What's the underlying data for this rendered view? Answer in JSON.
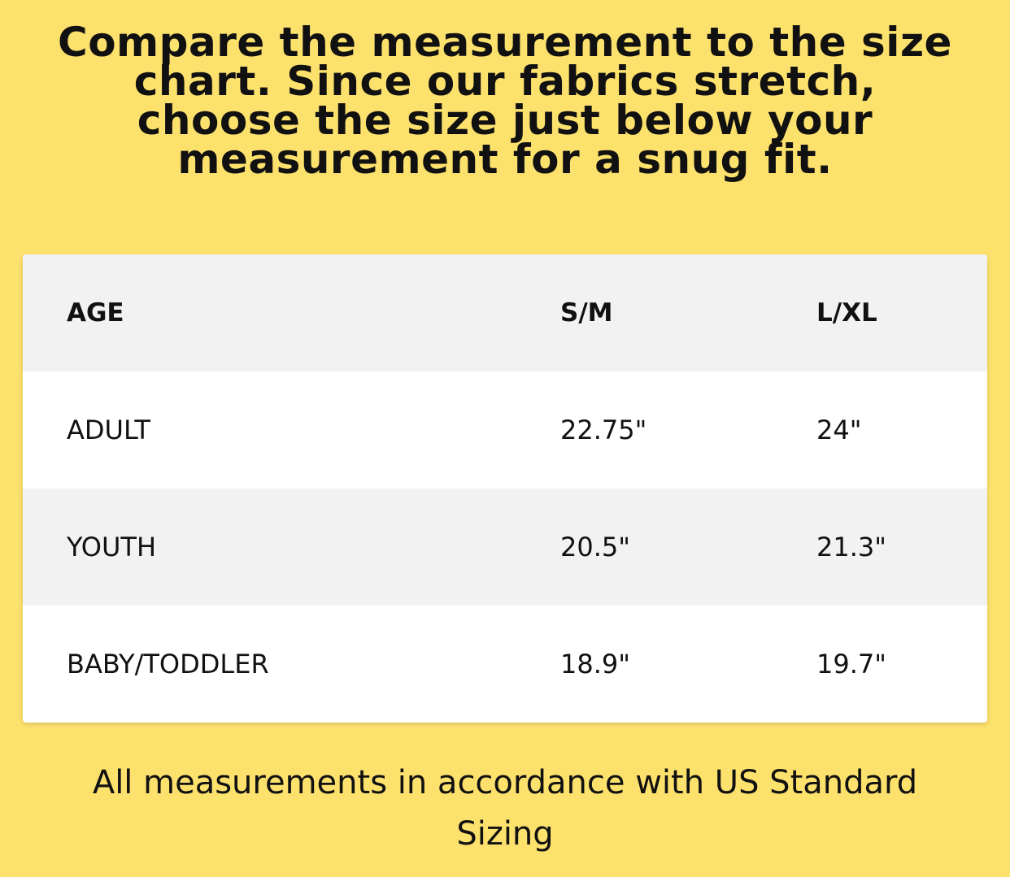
{
  "heading": "Compare the measurement to the size chart. Since our fabrics stretch, choose the size just below your measurement for a snug fit.",
  "table": {
    "headers": [
      "AGE",
      "S/M",
      "L/XL"
    ],
    "rows": [
      [
        "ADULT",
        "22.75\"",
        "24\""
      ],
      [
        "YOUTH",
        "20.5\"",
        "21.3\""
      ],
      [
        "BABY/TODDLER",
        "18.9\"",
        "19.7\""
      ]
    ]
  },
  "footer": "All measurements in accordance with US Standard Sizing",
  "colors": {
    "background": "#fde16d",
    "header_row": "#f2f2f2",
    "table": "#ffffff"
  }
}
